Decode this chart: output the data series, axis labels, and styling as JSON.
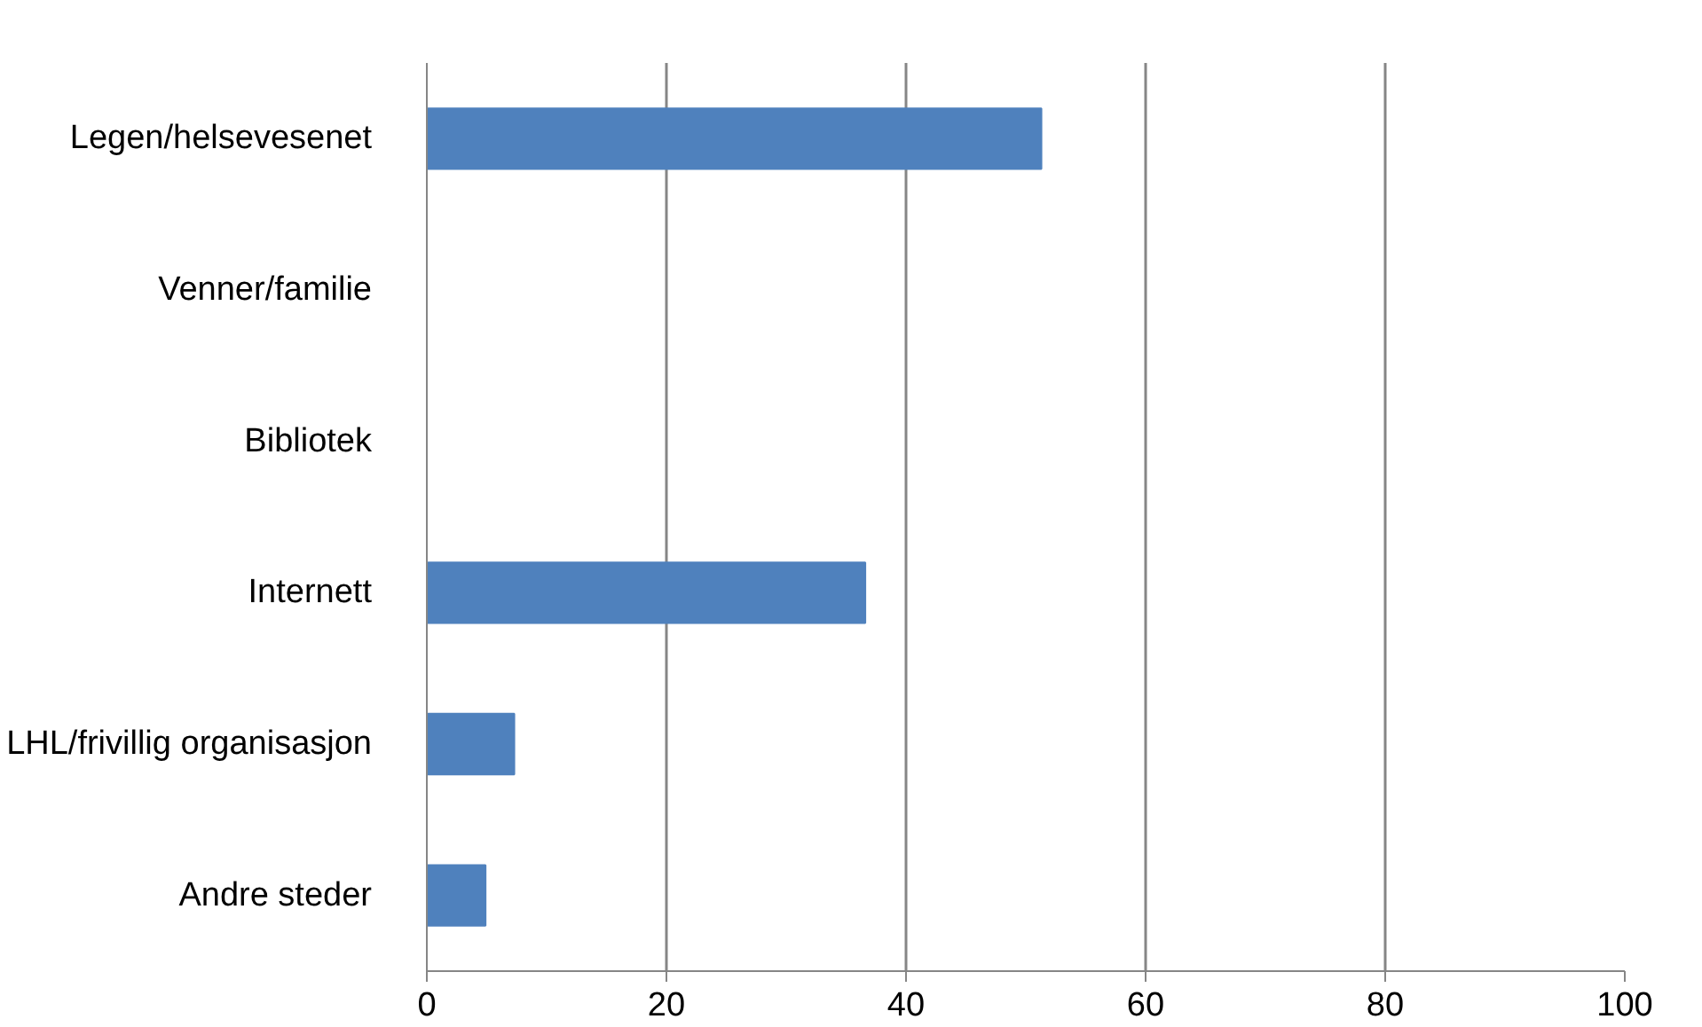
{
  "chart_data": {
    "type": "bar",
    "orientation": "horizontal",
    "categories": [
      "Legen/helsevesenet",
      "Venner/familie",
      "Bibliotek",
      "Internett",
      "LHL/frivillig organisasjon",
      "Andre steder"
    ],
    "values": [
      51.3,
      0,
      0,
      36.6,
      7.3,
      4.9
    ],
    "color": "#4f81bd",
    "xlim": [
      0,
      100
    ],
    "xticks": [
      0,
      20,
      40,
      60,
      80,
      100
    ],
    "grid": "x"
  }
}
